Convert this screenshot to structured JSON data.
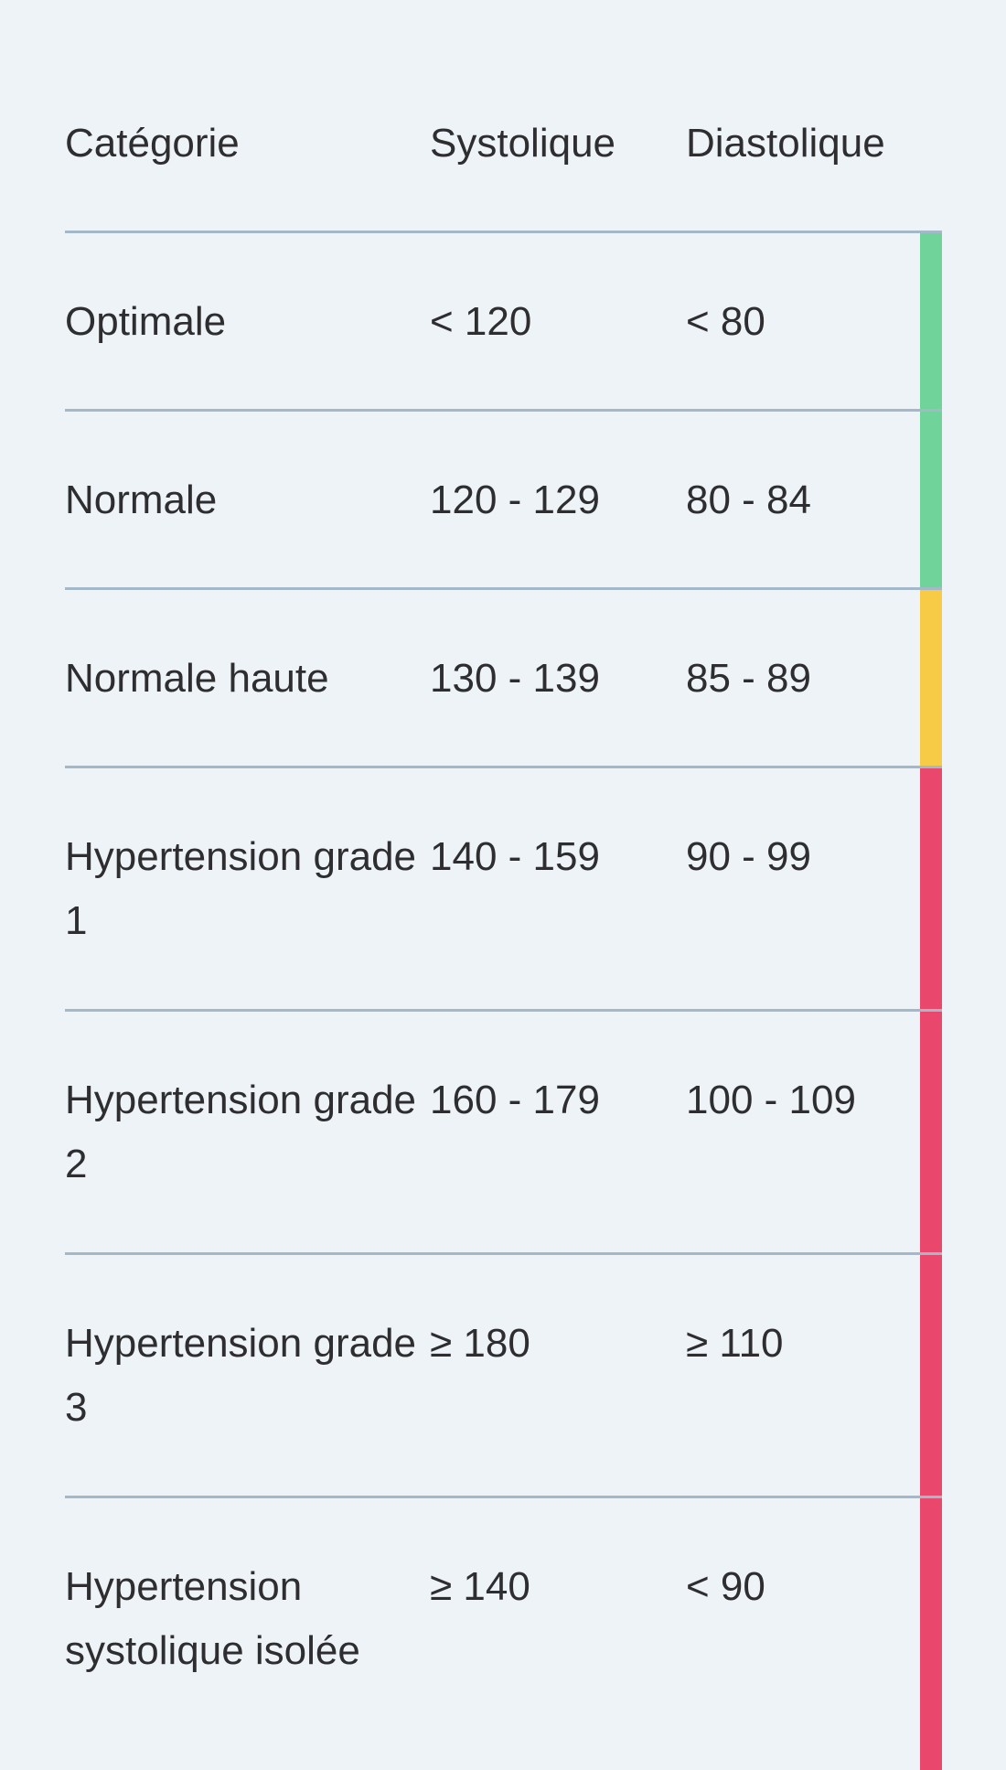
{
  "headers": {
    "category": "Catégorie",
    "systolic": "Systolique",
    "diastolic": "Diastolique"
  },
  "colors": {
    "green": "#6fd39a",
    "yellow": "#f7cb45",
    "red": "#e9476b"
  },
  "rows": [
    {
      "category": "Optimale",
      "systolic": "< 120",
      "diastolic": "< 80",
      "status_color": "green"
    },
    {
      "category": "Normale",
      "systolic": "120 - 129",
      "diastolic": "80 - 84",
      "status_color": "green"
    },
    {
      "category": "Normale haute",
      "systolic": "130 - 139",
      "diastolic": "85 - 89",
      "status_color": "yellow"
    },
    {
      "category": "Hypertension grade 1",
      "systolic": "140 - 159",
      "diastolic": "90 - 99",
      "status_color": "red"
    },
    {
      "category": "Hypertension grade 2",
      "systolic": "160 - 179",
      "diastolic": "100 - 109",
      "status_color": "red"
    },
    {
      "category": "Hypertension grade 3",
      "systolic": "≥ 180",
      "diastolic": "≥ 110",
      "status_color": "red"
    },
    {
      "category": "Hypertension systolique isolée",
      "systolic": "≥ 140",
      "diastolic": "< 90",
      "status_color": "red"
    }
  ]
}
